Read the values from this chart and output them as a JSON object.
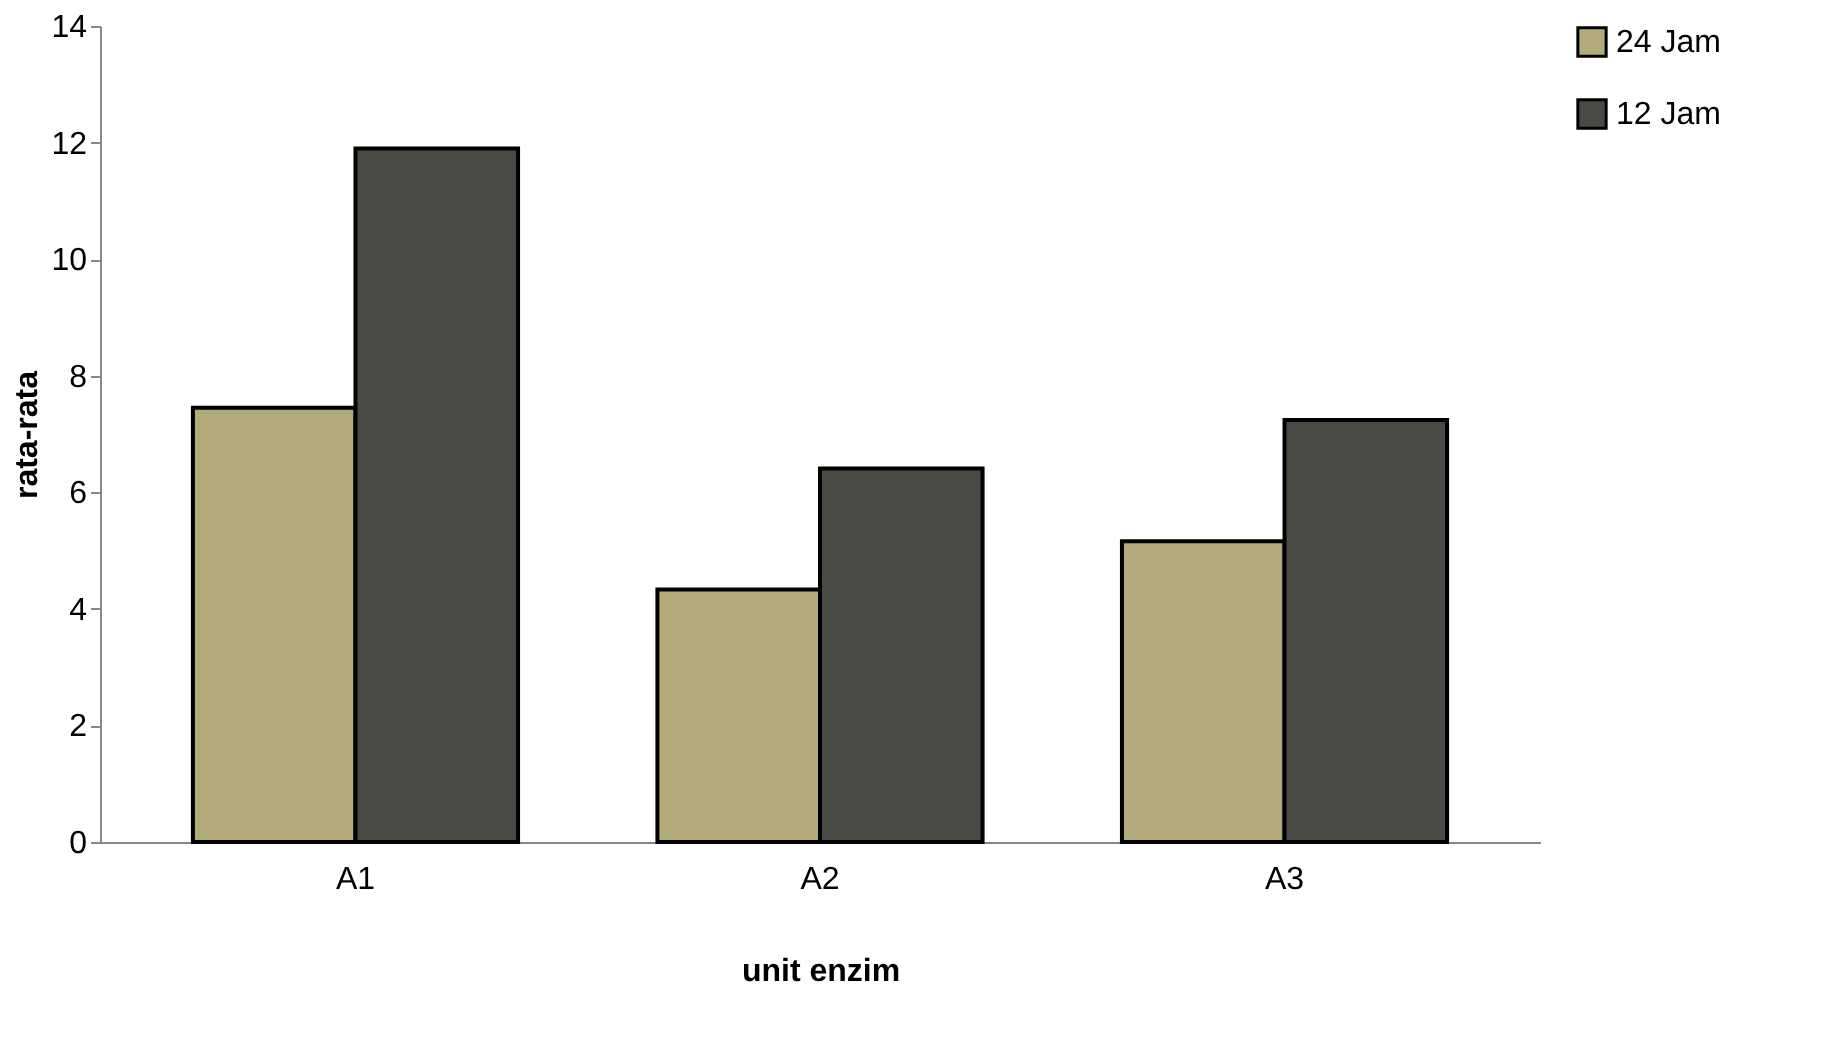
{
  "chart_data": {
    "type": "bar",
    "xlabel": "unit enzim",
    "ylabel": "rata-rata",
    "categories": [
      "A1",
      "A2",
      "A3"
    ],
    "series": [
      {
        "name": "24 Jam",
        "color": "#b3ab7c",
        "values": [
          7.45,
          4.33,
          5.16
        ]
      },
      {
        "name": "12 Jam",
        "color": "#4a4a44",
        "values": [
          11.9,
          6.41,
          7.24
        ]
      }
    ],
    "ylim": [
      0,
      14
    ],
    "yticks": [
      0,
      2,
      4,
      6,
      8,
      10,
      12,
      14
    ],
    "grid": false,
    "legend": "right"
  }
}
